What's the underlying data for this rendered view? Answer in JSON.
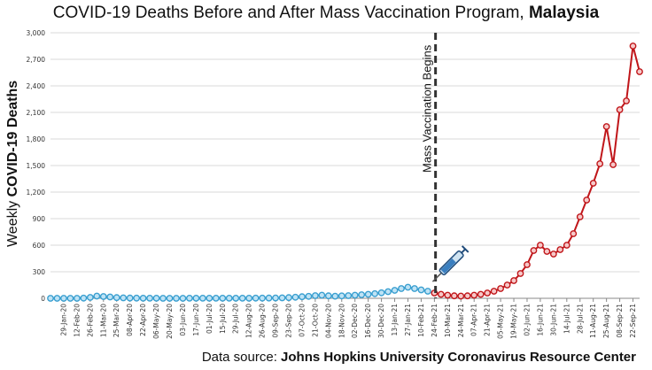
{
  "chart_data": {
    "type": "line",
    "title_main": "COVID-19 Deaths Before and After Mass Vaccination Program,",
    "title_country": "Malaysia",
    "ylabel_pre": "Weekly ",
    "ylabel_bold": "COVID-19 Deaths",
    "ylim": [
      0,
      3000
    ],
    "yticks": [
      "0",
      "300",
      "600",
      "900",
      "1,200",
      "1,500",
      "1,800",
      "2,100",
      "2,400",
      "2,700",
      "3,000"
    ],
    "grid": true,
    "x_labels": [
      "29-Jan-20",
      "12-Feb-20",
      "26-Feb-20",
      "11-Mar-20",
      "25-Mar-20",
      "08-Apr-20",
      "22-Apr-20",
      "06-May-20",
      "20-May-20",
      "03-Jun-20",
      "17-Jun-20",
      "01-Jul-20",
      "15-Jul-20",
      "29-Jul-20",
      "12-Aug-20",
      "26-Aug-20",
      "09-Sep-20",
      "23-Sep-20",
      "07-Oct-20",
      "21-Oct-20",
      "04-Nov-20",
      "18-Nov-20",
      "02-Dec-20",
      "16-Dec-20",
      "30-Dec-20",
      "13-Jan-21",
      "27-Jan-21",
      "10-Feb-21",
      "24-Feb-21",
      "10-Mar-21",
      "24-Mar-21",
      "07-Apr-21",
      "21-Apr-21",
      "05-May-21",
      "19-May-21",
      "02-Jun-21",
      "16-Jun-21",
      "30-Jun-21",
      "14-Jul-21",
      "28-Jul-21",
      "11-Aug-21",
      "25-Aug-21",
      "08-Sep-21",
      "22-Sep-21"
    ],
    "vaccination_marker": "Mass Vaccination Begins",
    "before_color": "#3a9fd0",
    "after_color": "#c0161a",
    "series": [
      {
        "values": [
          0,
          0,
          0,
          0,
          0,
          2,
          10,
          25,
          20,
          15,
          8,
          5,
          3,
          2,
          1,
          1,
          1,
          0,
          0,
          0,
          0,
          1,
          1,
          1,
          1,
          1,
          1,
          1,
          1,
          1,
          1,
          2,
          2,
          3,
          4,
          5,
          8,
          12,
          18,
          22,
          30,
          35,
          28,
          24,
          27,
          30,
          35,
          40,
          45,
          52,
          62,
          75,
          90,
          110,
          125,
          110,
          95,
          80
        ]
      },
      {
        "values": [
          60,
          45,
          35,
          28,
          25,
          28,
          35,
          45,
          60,
          80,
          110,
          150,
          200,
          280,
          380,
          540,
          600,
          530,
          500,
          550,
          600,
          730,
          920,
          1110,
          1300,
          1520,
          1940,
          1510,
          2130,
          2230,
          2850,
          2560
        ]
      }
    ]
  },
  "source_prefix": "Data source: ",
  "source_name": "Johns Hopkins University Coronavirus Resource Center",
  "icons": [
    "syringe-icon"
  ]
}
